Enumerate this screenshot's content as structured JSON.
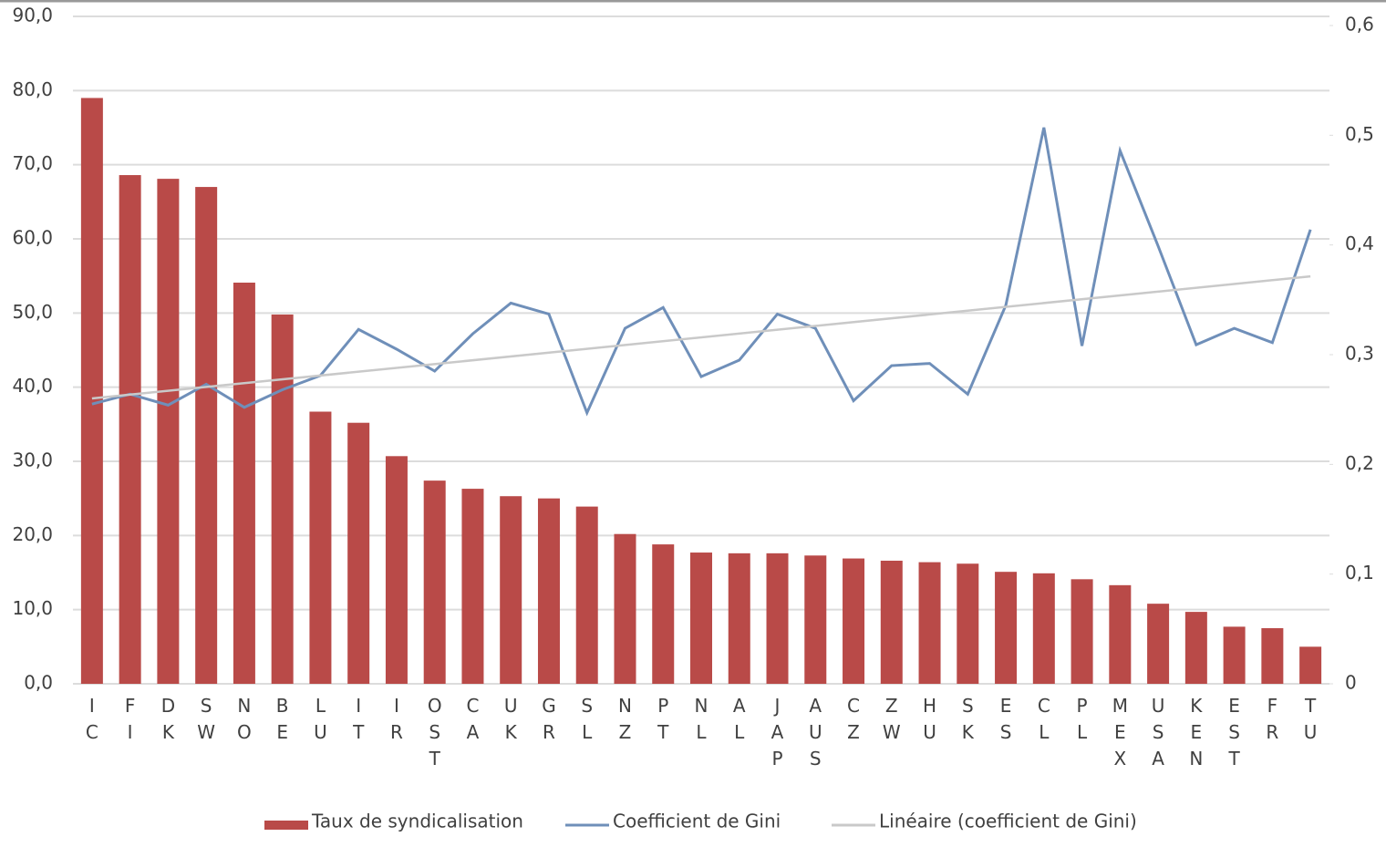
{
  "chart_data": {
    "type": "bar_line",
    "categories": [
      "IC",
      "FI",
      "DK",
      "SW",
      "NO",
      "BE",
      "LU",
      "IT",
      "IR",
      "OST",
      "CA",
      "UK",
      "GR",
      "SL",
      "NZ",
      "PT",
      "NL",
      "AL",
      "JAP",
      "AUS",
      "CZ",
      "ZW",
      "HU",
      "SK",
      "ES",
      "CL",
      "PL",
      "MEX",
      "USA",
      "KEN",
      "EST",
      "FR",
      "TU"
    ],
    "series": [
      {
        "name": "Taux de syndicalisation",
        "color": "#b94a48",
        "type": "bar",
        "values": [
          79.0,
          68.6,
          68.1,
          67.0,
          54.1,
          49.8,
          36.7,
          35.2,
          30.7,
          27.4,
          26.3,
          25.3,
          25.0,
          23.9,
          20.2,
          18.8,
          17.7,
          17.6,
          17.6,
          17.3,
          16.9,
          16.6,
          16.4,
          16.2,
          15.1,
          14.9,
          14.1,
          13.3,
          10.8,
          9.7,
          7.7,
          7.5,
          5.0
        ]
      },
      {
        "name": "Coefficient de Gini",
        "color": "#6f8fb9",
        "type": "line",
        "axis": "y2",
        "values": [
          0.255,
          0.264,
          0.254,
          0.273,
          0.252,
          0.268,
          0.281,
          0.323,
          0.305,
          0.285,
          0.319,
          0.347,
          0.337,
          0.247,
          0.324,
          0.343,
          0.28,
          0.295,
          0.337,
          0.324,
          0.258,
          0.29,
          0.292,
          0.264,
          0.345,
          0.507,
          0.308,
          0.486,
          0.399,
          0.309,
          0.324,
          0.311,
          0.414
        ]
      }
    ],
    "trendline": {
      "name": "Linéaire (coefficient de Gini)",
      "color": "#c9c9c9"
    },
    "ylim": [
      0,
      90
    ],
    "yticks": [
      {
        "value": 0,
        "label": "0,0"
      },
      {
        "value": 10,
        "label": "10,0"
      },
      {
        "value": 20,
        "label": "20,0"
      },
      {
        "value": 30,
        "label": "30,0"
      },
      {
        "value": 40,
        "label": "40,0"
      },
      {
        "value": 50,
        "label": "50,0"
      },
      {
        "value": 60,
        "label": "60,0"
      },
      {
        "value": 70,
        "label": "70,0"
      },
      {
        "value": 80,
        "label": "80,0"
      },
      {
        "value": 90,
        "label": "90,0"
      }
    ],
    "y2lim": [
      0,
      0.6
    ],
    "y2ticks": [
      0,
      {
        "value": 0.1,
        "label": "0,1"
      },
      {
        "value": 0.2,
        "label": "0,2"
      },
      {
        "value": 0.3,
        "label": "0,3"
      },
      {
        "value": 0.4,
        "label": "0,4"
      },
      {
        "value": 0.5,
        "label": "0,5"
      },
      {
        "value": 0.6,
        "label": "0,6"
      }
    ],
    "grid": true
  }
}
